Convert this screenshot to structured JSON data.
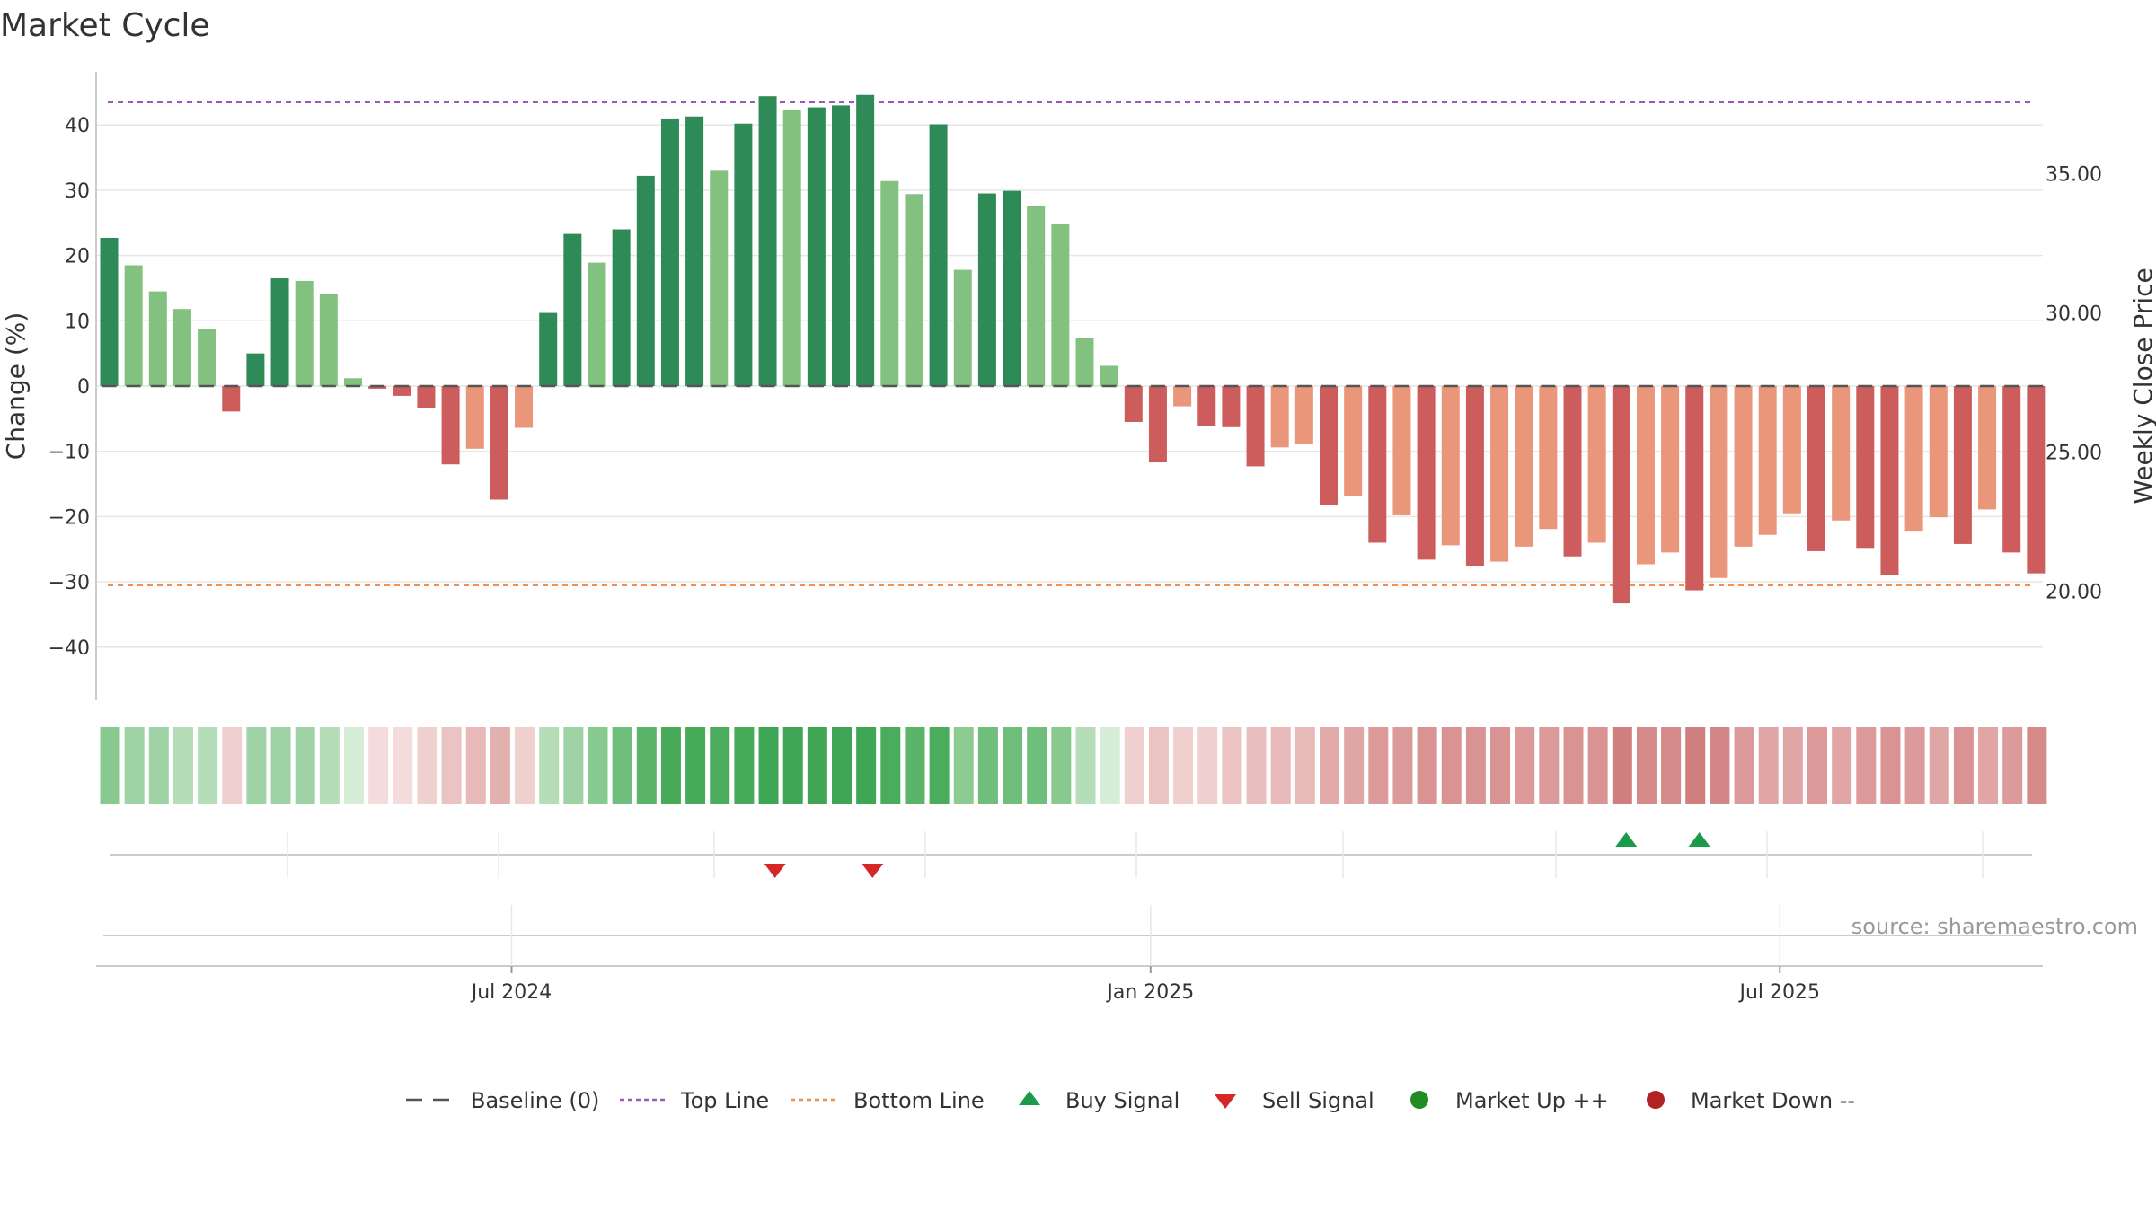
{
  "title": "Market Cycle",
  "source": "source: sharemaestro.com",
  "colors": {
    "up_strong": "#2e8b57",
    "up_weak": "#82c180",
    "down_strong": "#cd5c5c",
    "down_weak": "#e9967a",
    "top_line": "#9b59b6",
    "bottom_line": "#f0904f",
    "baseline": "#555555",
    "buy": "#1a9a4a",
    "sell": "#d62728",
    "market_up": "#228b22",
    "market_down": "#b22222"
  },
  "legend": [
    {
      "key": "baseline",
      "label": "Baseline (0)"
    },
    {
      "key": "top",
      "label": "Top Line"
    },
    {
      "key": "bottom",
      "label": "Bottom Line"
    },
    {
      "key": "buy",
      "label": "Buy Signal"
    },
    {
      "key": "sell",
      "label": "Sell Signal"
    },
    {
      "key": "mup",
      "label": "Market Up ++"
    },
    {
      "key": "mdown",
      "label": "Market Down --"
    }
  ],
  "chart_data": {
    "type": "bar",
    "ylabel_left": "Change (%)",
    "ylabel_right": "Weekly Close Price",
    "ylim_left": [
      -48,
      48
    ],
    "yticks_left": [
      -40,
      -30,
      -20,
      -10,
      0,
      10,
      20,
      30,
      40
    ],
    "ylim_right": [
      15.2,
      37.5
    ],
    "yticks_right": [
      "20.00",
      "25.00",
      "30.00",
      "35.00"
    ],
    "yticks_right_values": [
      20,
      25,
      30,
      35
    ],
    "x_tick_labels": [
      "Jul 2024",
      "Jan 2025",
      "Jul 2025"
    ],
    "x_tick_weeks": [
      16.5,
      42.7,
      68.5
    ],
    "top_line": 43.5,
    "bottom_line": -30.5,
    "values": [
      22.7,
      18.5,
      14.5,
      11.8,
      8.7,
      -3.9,
      5.0,
      16.5,
      16.1,
      14.1,
      1.2,
      -0.4,
      -1.5,
      -3.4,
      -12.0,
      -9.6,
      -17.4,
      -6.4,
      11.2,
      23.3,
      18.9,
      24.0,
      32.2,
      41.0,
      41.3,
      33.1,
      40.2,
      44.4,
      42.3,
      42.7,
      43.0,
      44.6,
      31.4,
      29.4,
      40.1,
      17.8,
      29.5,
      29.9,
      27.6,
      24.8,
      7.3,
      3.1,
      -5.5,
      -11.7,
      -3.1,
      -6.1,
      -6.3,
      -12.3,
      -9.4,
      -8.8,
      -18.3,
      -16.8,
      -24.0,
      -19.8,
      -26.6,
      -24.4,
      -27.6,
      -26.9,
      -24.6,
      -21.9,
      -26.1,
      -24.0,
      -33.3,
      -27.3,
      -25.5,
      -31.3,
      -29.4,
      -24.6,
      -22.8,
      -19.5,
      -25.3,
      -20.6,
      -24.8,
      -28.9,
      -22.3,
      -20.1,
      -24.2,
      -18.9,
      -25.5,
      -28.7
    ],
    "strength": [
      2,
      1,
      1,
      1,
      1,
      2,
      2,
      2,
      1,
      1,
      1,
      2,
      2,
      2,
      2,
      1,
      2,
      1,
      2,
      2,
      1,
      2,
      2,
      2,
      2,
      1,
      2,
      2,
      1,
      2,
      2,
      2,
      1,
      1,
      2,
      1,
      2,
      2,
      1,
      1,
      1,
      1,
      2,
      2,
      1,
      2,
      2,
      2,
      1,
      1,
      2,
      1,
      2,
      1,
      2,
      1,
      2,
      1,
      1,
      1,
      2,
      1,
      2,
      1,
      1,
      2,
      1,
      1,
      1,
      1,
      2,
      1,
      2,
      2,
      1,
      1,
      2,
      1,
      2,
      2
    ],
    "heat_colors": [
      "#87c98f",
      "#9fd3a5",
      "#9fd3a5",
      "#b4ddb8",
      "#b4ddb8",
      "#f0cfcf",
      "#9fd3a5",
      "#9fd3a5",
      "#9fd3a5",
      "#b4ddb8",
      "#d5ecd7",
      "#f4dcdc",
      "#f4dcdc",
      "#f0cfcf",
      "#ebc3c3",
      "#e7b9b9",
      "#e3b0b0",
      "#f0cfcf",
      "#b4ddb8",
      "#9fd3a5",
      "#87c98f",
      "#6fbe7c",
      "#5ab46a",
      "#47ab5a",
      "#47ab5a",
      "#4aac5c",
      "#47ab5a",
      "#3ea655",
      "#3ea655",
      "#3ea655",
      "#3ea655",
      "#3ea655",
      "#4aac5c",
      "#5ab46a",
      "#4aac5c",
      "#8ccb92",
      "#6fbe7c",
      "#6fbe7c",
      "#6fbe7c",
      "#87c98f",
      "#b4ddb8",
      "#d5ecd7",
      "#f0cfcf",
      "#ebc3c3",
      "#f0cfcf",
      "#f0cfcf",
      "#ebc3c3",
      "#e9bebe",
      "#e7b9b9",
      "#e7b9b9",
      "#e3aaaa",
      "#e0a5a5",
      "#dc9a9a",
      "#dc9a9a",
      "#d99393",
      "#d99393",
      "#d99393",
      "#d99393",
      "#dc9a9a",
      "#dc9a9a",
      "#d99393",
      "#d99393",
      "#d07f7f",
      "#d58a8a",
      "#d58a8a",
      "#d07f7f",
      "#d38686",
      "#dc9a9a",
      "#e0a5a5",
      "#e0a5a5",
      "#dc9a9a",
      "#e0a5a5",
      "#dc9a9a",
      "#d99393",
      "#dc9a9a",
      "#e0a5a5",
      "#d99393",
      "#e0a5a5",
      "#dc9a9a",
      "#d58a8a"
    ],
    "buy_signals": [
      62.2,
      65.2
    ],
    "sell_signals": [
      27.3,
      31.3
    ]
  }
}
